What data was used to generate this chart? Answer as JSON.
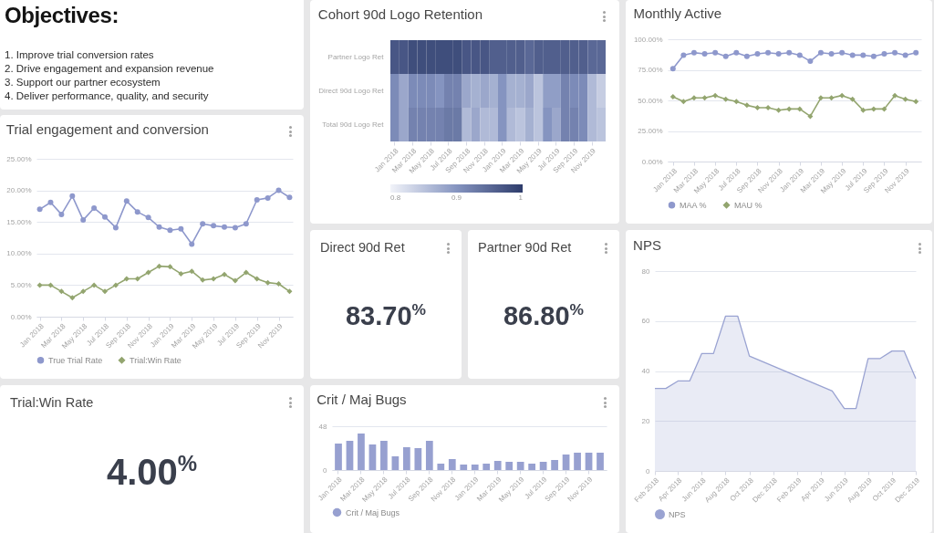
{
  "chart_data": [
    {
      "type": "other",
      "title": "Objectives:",
      "annotations": [
        "1. Improve trial conversion rates",
        "2. Drive engagement and expansion revenue",
        "3. Support our partner ecosystem",
        "4. Deliver performance, quality, and security"
      ]
    },
    {
      "type": "heatmap",
      "title": "Cohort 90d Logo Retention",
      "categories": [
        "Jan 2018",
        null,
        "Mar 2018",
        null,
        "May 2018",
        null,
        "Jul 2018",
        null,
        "Sep 2018",
        null,
        "Nov 2018",
        null,
        "Jan 2019",
        null,
        "Mar 2019",
        null,
        "May 2019",
        null,
        "Jul 2019",
        null,
        "Sep 2019",
        null,
        "Nov 2019",
        null
      ],
      "y_categories": [
        "Partner Logo Ret",
        "Direct 90d Logo Ret",
        "Total 90d Logo Ret"
      ],
      "cells": [
        [
          0.97,
          0.97,
          0.98,
          0.98,
          0.98,
          0.98,
          0.98,
          0.98,
          0.97,
          0.97,
          0.97,
          0.96,
          0.96,
          0.96,
          0.96,
          0.95,
          0.96,
          0.96,
          0.96,
          0.96,
          0.96,
          0.96,
          0.95,
          0.95
        ],
        [
          0.91,
          0.88,
          0.91,
          0.91,
          0.91,
          0.9,
          0.92,
          0.92,
          0.88,
          0.87,
          0.88,
          0.87,
          0.9,
          0.87,
          0.87,
          0.88,
          0.85,
          0.89,
          0.89,
          0.92,
          0.91,
          0.91,
          0.86,
          0.84
        ],
        [
          0.91,
          0.88,
          0.92,
          0.92,
          0.92,
          0.92,
          0.93,
          0.93,
          0.86,
          0.88,
          0.86,
          0.86,
          0.9,
          0.86,
          0.85,
          0.87,
          0.85,
          0.9,
          0.88,
          0.92,
          0.92,
          0.91,
          0.86,
          0.85
        ]
      ],
      "clim": [
        0.8,
        1
      ],
      "cticks": [
        0.8,
        0.9,
        1
      ]
    },
    {
      "type": "line",
      "title": "Monthly Active",
      "categories": [
        "Jan 2018",
        null,
        "Mar 2018",
        null,
        "May 2018",
        null,
        "Jul 2018",
        null,
        "Sep 2018",
        null,
        "Nov 2018",
        null,
        "Jan 2019",
        null,
        "Mar 2019",
        null,
        "May 2019",
        null,
        "Jul 2019",
        null,
        "Sep 2019",
        null,
        "Nov 2019",
        null
      ],
      "series": [
        {
          "name": "MAA %",
          "color": "#8e98cc",
          "marker": "circle",
          "values": [
            76,
            87,
            89,
            88,
            89,
            86,
            89,
            86,
            88,
            89,
            88,
            89,
            87,
            82,
            89,
            88,
            89,
            87,
            87,
            86,
            88,
            89,
            87,
            89
          ]
        },
        {
          "name": "MAU %",
          "color": "#93a56f",
          "marker": "diamond",
          "values": [
            53,
            49,
            52,
            52,
            54,
            51,
            49,
            46,
            44,
            44,
            42,
            43,
            43,
            37,
            52,
            52,
            54,
            51,
            42,
            43,
            43,
            54,
            51,
            49
          ]
        }
      ],
      "ylim": [
        0,
        100
      ],
      "yticks": [
        {
          "value": 0,
          "label": "0.00%"
        },
        {
          "value": 25,
          "label": "25.00%"
        },
        {
          "value": 50,
          "label": "50.00%"
        },
        {
          "value": 75,
          "label": "75.00%"
        },
        {
          "value": 100,
          "label": "100.00%"
        }
      ],
      "grid": "y",
      "legend": "bottom"
    },
    {
      "type": "line",
      "title": "Trial engagement and conversion",
      "categories": [
        "Jan 2018",
        null,
        "Mar 2018",
        null,
        "May 2018",
        null,
        "Jul 2018",
        null,
        "Sep 2018",
        null,
        "Nov 2018",
        null,
        "Jan 2019",
        null,
        "Mar 2019",
        null,
        "May 2019",
        null,
        "Jul 2019",
        null,
        "Sep 2019",
        null,
        "Nov 2019",
        null
      ],
      "series": [
        {
          "name": "True Trial Rate",
          "color": "#8e98cc",
          "marker": "circle",
          "values": [
            17.0,
            18.1,
            16.2,
            19.1,
            15.3,
            17.2,
            15.8,
            14.1,
            18.3,
            16.6,
            15.7,
            14.2,
            13.7,
            13.9,
            11.5,
            14.7,
            14.4,
            14.2,
            14.1,
            14.7,
            18.5,
            18.8,
            20.0,
            18.9
          ]
        },
        {
          "name": "Trial:Win Rate",
          "color": "#93a56f",
          "marker": "diamond",
          "values": [
            5.0,
            5.0,
            4.0,
            3.0,
            4.0,
            5.0,
            4.0,
            5.0,
            6.0,
            6.0,
            7.0,
            8.0,
            7.9,
            6.8,
            7.2,
            5.8,
            6.0,
            6.7,
            5.7,
            7.0,
            6.0,
            5.4,
            5.2,
            4.0
          ]
        }
      ],
      "ylim": [
        0,
        25
      ],
      "yticks": [
        {
          "value": 0,
          "label": "0.00%"
        },
        {
          "value": 5,
          "label": "5.00%"
        },
        {
          "value": 10,
          "label": "10.00%"
        },
        {
          "value": 15,
          "label": "15.00%"
        },
        {
          "value": 20,
          "label": "20.00%"
        },
        {
          "value": 25,
          "label": "25.00%"
        }
      ],
      "grid": "y",
      "legend": "bottom"
    },
    {
      "type": "other",
      "title": "Direct 90d Ret",
      "annotations": [
        "83.70$^{%}$"
      ]
    },
    {
      "type": "other",
      "title": "Partner 90d Ret",
      "annotations": [
        "86.80$^{%}$"
      ]
    },
    {
      "type": "area",
      "title": "NPS",
      "x": [
        "2018-02",
        "2018-03",
        "2018-04",
        "2018-05",
        "2018-06",
        "2018-07",
        "2018-08",
        "2018-09",
        "2018-10",
        "2019-05",
        "2019-06",
        "2019-07",
        "2019-08",
        "2019-09",
        "2019-10",
        "2019-11",
        "2019-12"
      ],
      "series": [
        {
          "name": "NPS",
          "color": "#9aa3d2",
          "values": [
            33,
            33,
            36,
            36,
            47,
            47,
            62,
            62,
            46,
            32,
            25,
            25,
            45,
            45,
            48,
            48,
            37
          ]
        }
      ],
      "xlim": [
        "2018-02",
        "2019-12"
      ],
      "xticks": [
        {
          "value": "2018-02",
          "label": "Feb 2018"
        },
        {
          "value": "2018-04",
          "label": "Apr 2018"
        },
        {
          "value": "2018-06",
          "label": "Jun 2018"
        },
        {
          "value": "2018-08",
          "label": "Aug 2018"
        },
        {
          "value": "2018-10",
          "label": "Oct 2018"
        },
        {
          "value": "2018-12",
          "label": "Dec 2018"
        },
        {
          "value": "2019-02",
          "label": "Feb 2019"
        },
        {
          "value": "2019-04",
          "label": "Apr 2019"
        },
        {
          "value": "2019-06",
          "label": "Jun 2019"
        },
        {
          "value": "2019-08",
          "label": "Aug 2019"
        },
        {
          "value": "2019-10",
          "label": "Oct 2019"
        },
        {
          "value": "2019-12",
          "label": "Dec 2019"
        }
      ],
      "ylim": [
        0,
        80
      ],
      "yticks": [
        0,
        20,
        40,
        60,
        80
      ],
      "grid": "y",
      "legend": "bottom"
    },
    {
      "type": "other",
      "title": "Trial:Win Rate",
      "annotations": [
        "4.00$^{%}$"
      ]
    },
    {
      "type": "bar",
      "title": "Crit / Maj Bugs",
      "categories": [
        "Jan 2018",
        null,
        "Mar 2018",
        null,
        "May 2018",
        null,
        "Jul 2018",
        null,
        "Sep 2018",
        null,
        "Nov 2018",
        null,
        "Jan 2019",
        null,
        "Mar 2019",
        null,
        "May 2019",
        null,
        "Jul 2019",
        null,
        "Sep 2019",
        null,
        "Nov 2019",
        null
      ],
      "series": [
        {
          "name": "Crit / Maj Bugs",
          "color": "#97a0d0",
          "values": [
            29,
            32,
            40,
            28,
            32,
            15,
            25,
            24,
            32,
            7,
            12,
            6,
            6,
            7,
            10,
            9,
            9,
            7,
            9,
            11,
            17,
            19,
            19,
            19
          ]
        }
      ],
      "ylim": [
        0,
        48
      ],
      "yticks": [
        0,
        48
      ],
      "grid": "y",
      "legend": "bottom"
    }
  ]
}
